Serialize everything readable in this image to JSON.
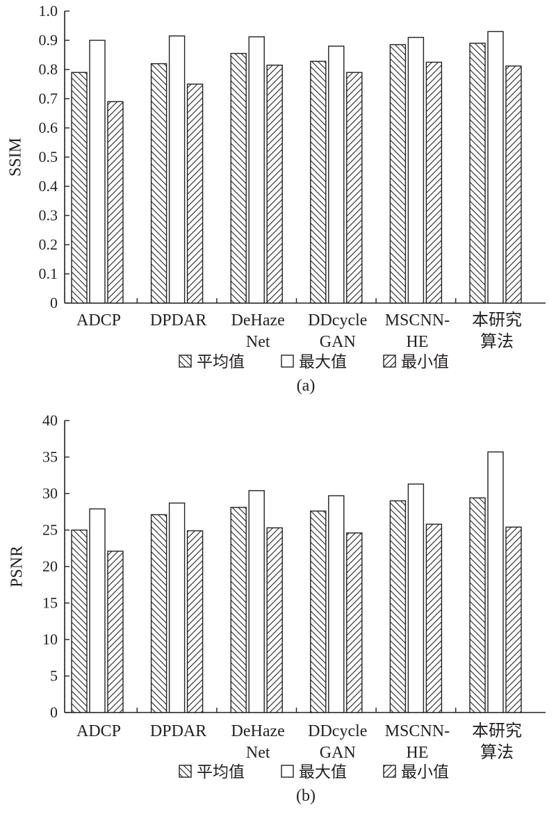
{
  "chart_data": [
    {
      "type": "bar",
      "panel_label": "(a)",
      "ylabel": "SSIM",
      "ylim": [
        0,
        1.0
      ],
      "yticks": [
        0,
        0.1,
        0.2,
        0.3,
        0.4,
        0.5,
        0.6,
        0.7,
        0.8,
        0.9,
        1.0
      ],
      "ytick_labels": [
        "0",
        "0.1",
        "0.2",
        "0.3",
        "0.4",
        "0.5",
        "0.6",
        "0.7",
        "0.8",
        "0.9",
        "1.0"
      ],
      "categories": [
        [
          "ADCP"
        ],
        [
          "DPDAR"
        ],
        [
          "DeHaze",
          "Net"
        ],
        [
          "DDcycle",
          "GAN"
        ],
        [
          "MSCNN-",
          "HE"
        ],
        [
          "本研究",
          "算法"
        ]
      ],
      "series": [
        {
          "name": "平均值",
          "pattern": "backslash",
          "values": [
            0.79,
            0.82,
            0.855,
            0.828,
            0.885,
            0.89
          ]
        },
        {
          "name": "最大值",
          "pattern": "none",
          "values": [
            0.9,
            0.915,
            0.912,
            0.88,
            0.91,
            0.93
          ]
        },
        {
          "name": "最小值",
          "pattern": "slash",
          "values": [
            0.69,
            0.75,
            0.815,
            0.79,
            0.825,
            0.812
          ]
        }
      ],
      "legend": "bottom"
    },
    {
      "type": "bar",
      "panel_label": "(b)",
      "ylabel": "PSNR",
      "ylim": [
        0,
        40
      ],
      "yticks": [
        0,
        5,
        10,
        15,
        20,
        25,
        30,
        35,
        40
      ],
      "ytick_labels": [
        "0",
        "5",
        "10",
        "15",
        "20",
        "25",
        "30",
        "35",
        "40"
      ],
      "categories": [
        [
          "ADCP"
        ],
        [
          "DPDAR"
        ],
        [
          "DeHaze",
          "Net"
        ],
        [
          "DDcycle",
          "GAN"
        ],
        [
          "MSCNN-",
          "HE"
        ],
        [
          "本研究",
          "算法"
        ]
      ],
      "series": [
        {
          "name": "平均值",
          "pattern": "backslash",
          "values": [
            25.0,
            27.1,
            28.1,
            27.6,
            29.0,
            29.4
          ]
        },
        {
          "name": "最大值",
          "pattern": "none",
          "values": [
            27.9,
            28.7,
            30.4,
            29.7,
            31.3,
            35.7
          ]
        },
        {
          "name": "最小值",
          "pattern": "slash",
          "values": [
            22.1,
            24.9,
            25.3,
            24.6,
            25.8,
            25.4
          ]
        }
      ],
      "legend": "bottom"
    }
  ]
}
